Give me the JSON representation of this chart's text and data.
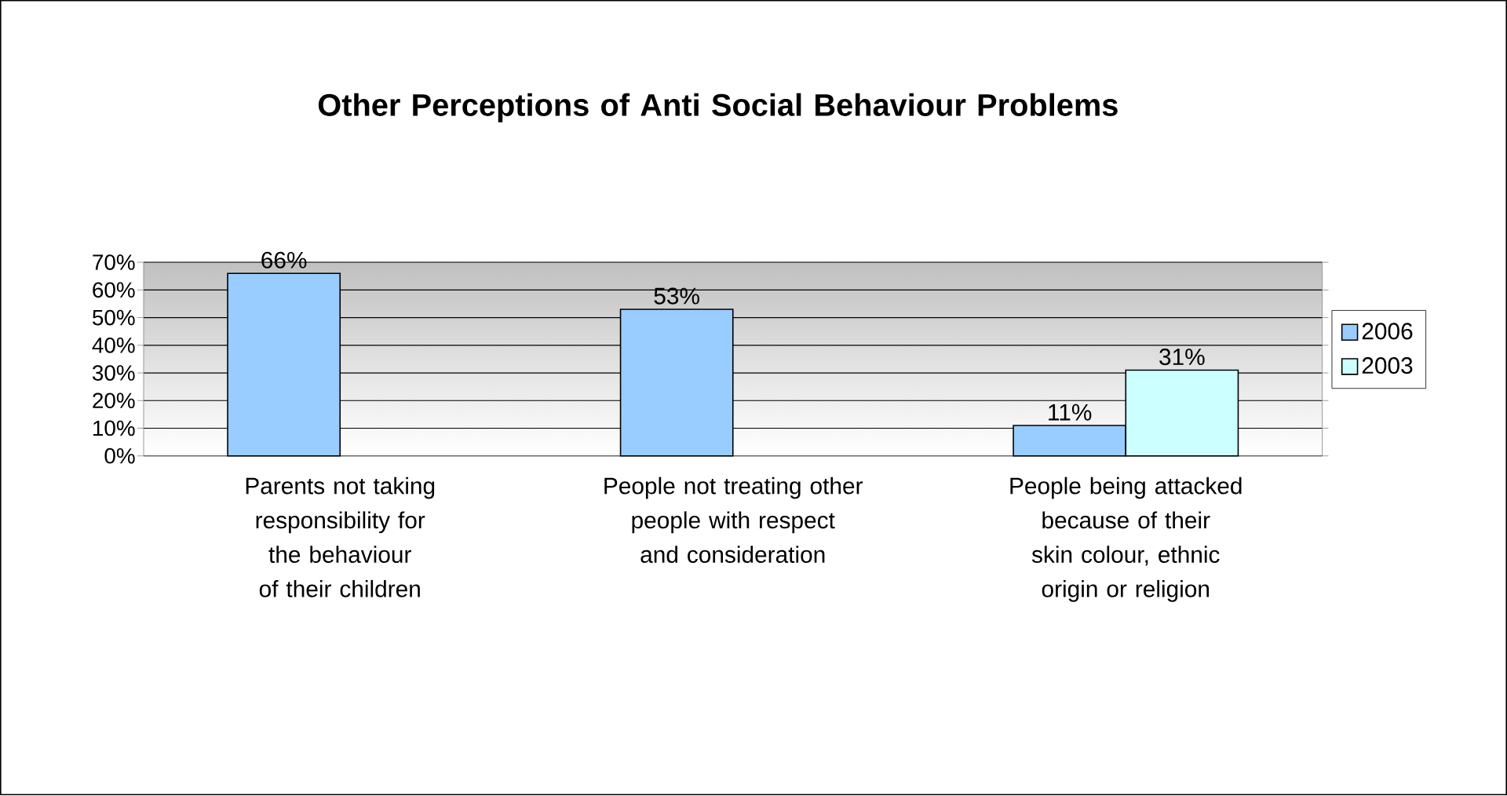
{
  "chart_data": {
    "type": "bar",
    "title": "Other Perceptions of Anti Social Behaviour Problems",
    "categories": [
      "Parents not taking responsibility for the behaviour of their children",
      "People not treating other people with respect and consideration",
      "People being attacked because of their skin colour, ethnic origin or religion"
    ],
    "series": [
      {
        "name": "2006",
        "color": "#99ccff",
        "values": [
          66,
          53,
          11
        ],
        "value_labels": [
          "66%",
          "53%",
          "11%"
        ]
      },
      {
        "name": "2003",
        "color": "#ccffff",
        "values": [
          null,
          null,
          31
        ],
        "value_labels": [
          null,
          null,
          "31%"
        ]
      }
    ],
    "ylim": [
      0,
      70
    ],
    "yticks": [
      {
        "value": 0,
        "label": "0%"
      },
      {
        "value": 10,
        "label": "10%"
      },
      {
        "value": 20,
        "label": "20%"
      },
      {
        "value": 30,
        "label": "30%"
      },
      {
        "value": 40,
        "label": "40%"
      },
      {
        "value": 50,
        "label": "50%"
      },
      {
        "value": 60,
        "label": "60%"
      },
      {
        "value": 70,
        "label": "70%"
      }
    ],
    "grid": "y",
    "legend": "right"
  }
}
